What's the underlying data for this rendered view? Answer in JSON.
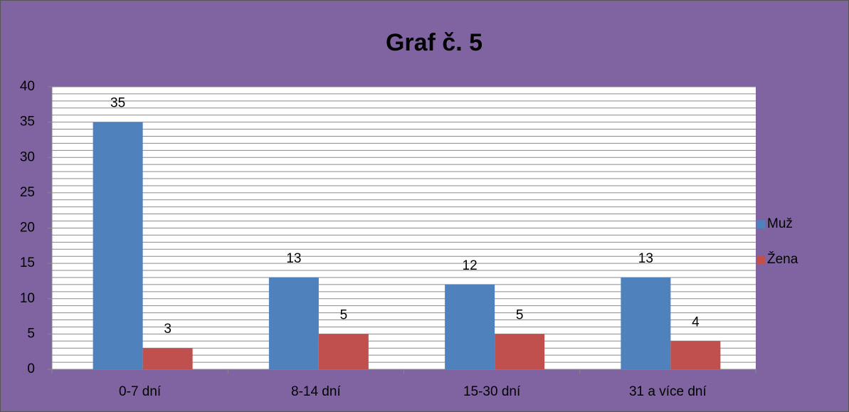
{
  "chart_data": {
    "type": "bar",
    "title": "Graf č. 5",
    "categories": [
      "0-7 dní",
      "8-14 dní",
      "15-30 dní",
      "31 a více dní"
    ],
    "series": [
      {
        "name": "Muž",
        "color": "#4f81bd",
        "values": [
          35,
          13,
          12,
          13
        ]
      },
      {
        "name": "Žena",
        "color": "#c0504d",
        "values": [
          3,
          5,
          5,
          4
        ]
      }
    ],
    "ylim": [
      0,
      40
    ],
    "yticks": [
      0,
      5,
      10,
      15,
      20,
      25,
      30,
      35,
      40
    ],
    "yminorticks": [
      0,
      1,
      2,
      3,
      4,
      5,
      6,
      7,
      8,
      9,
      10,
      11,
      12,
      13,
      14,
      15,
      16,
      17,
      18,
      19,
      20,
      21,
      22,
      23,
      24,
      25,
      26,
      27,
      28,
      29,
      30,
      31,
      32,
      33,
      34,
      35,
      36,
      37,
      38,
      39,
      40
    ],
    "grid": true,
    "legend": "right",
    "background": "#8064a2"
  }
}
